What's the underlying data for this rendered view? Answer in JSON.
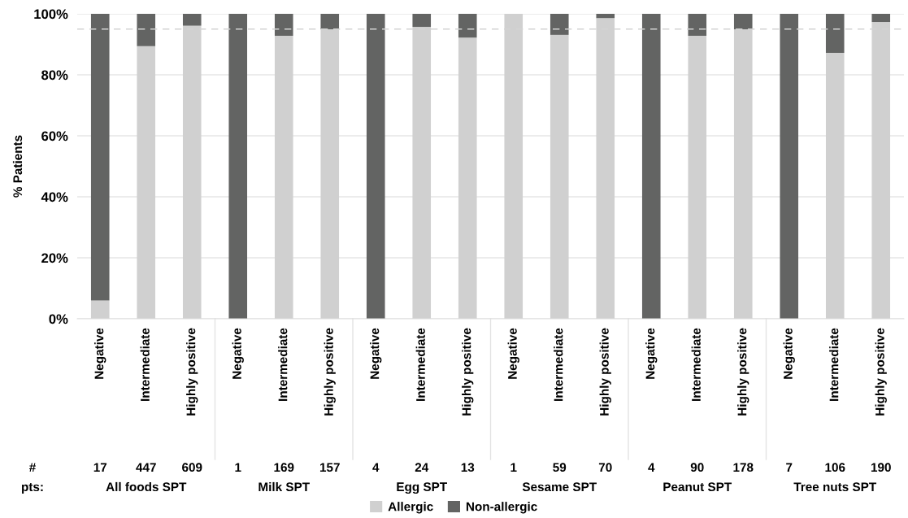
{
  "chart_data": {
    "type": "bar",
    "stacked": true,
    "ylabel": "% Patients",
    "categories": [
      "Negative",
      "Intermediate",
      "Highly positive",
      "Negative",
      "Intermediate",
      "Highly positive",
      "Negative",
      "Intermediate",
      "Highly positive",
      "Negative",
      "Intermediate",
      "Highly positive",
      "Negative",
      "Intermediate",
      "Highly positive",
      "Negative",
      "Intermediate",
      "Highly positive"
    ],
    "series": [
      {
        "name": "Allergic",
        "color": "#d0d0d0",
        "values": [
          6,
          89.4,
          96.1,
          0,
          92.8,
          94.9,
          0,
          95.7,
          92.2,
          100,
          93.1,
          98.6,
          0,
          92.8,
          94.9,
          0,
          87.2,
          97.3
        ]
      },
      {
        "name": "Non-allergic",
        "color": "#636463",
        "values": [
          94,
          10.6,
          3.9,
          100,
          7.2,
          5.1,
          100,
          4.3,
          7.8,
          0,
          6.9,
          1.4,
          100,
          7.2,
          5.1,
          100,
          12.8,
          2.7
        ]
      }
    ],
    "ylim": [
      0,
      100
    ],
    "yticks": [
      {
        "value": 0,
        "label": "0%"
      },
      {
        "value": 20,
        "label": "20%"
      },
      {
        "value": 40,
        "label": "40%"
      },
      {
        "value": 60,
        "label": "60%"
      },
      {
        "value": 80,
        "label": "80%"
      },
      {
        "value": 100,
        "label": "100%"
      }
    ],
    "grid": "y",
    "legend": "bottom",
    "ref_lines": [
      {
        "axis": "y",
        "value": 95,
        "color": "#d3d3d3",
        "line_style": "dashed"
      }
    ],
    "annotations": [
      "#",
      "pts:",
      "17",
      "447",
      "609",
      "1",
      "169",
      "157",
      "4",
      "24",
      "13",
      "1",
      "59",
      "70",
      "4",
      "90",
      "178",
      "7",
      "106",
      "190",
      "All foods SPT",
      "Milk SPT",
      "Egg SPT",
      "Sesame SPT",
      "Peanut SPT",
      "Tree nuts SPT"
    ]
  }
}
